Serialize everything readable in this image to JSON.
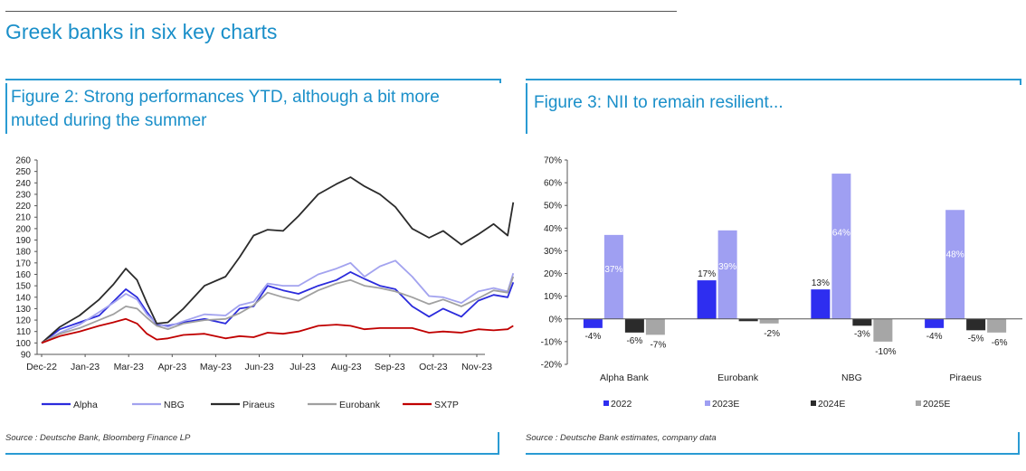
{
  "page": {
    "title": "Greek banks in six key charts"
  },
  "fig2": {
    "title": "Figure 2: Strong performances YTD, although a bit more muted during the summer",
    "source": "Source : Deutsche Bank, Bloomberg Finance LP"
  },
  "fig3": {
    "title": "Figure 3: NII to remain resilient...",
    "source": "Source : Deutsche Bank estimates, company data"
  },
  "chart_data": [
    {
      "type": "line",
      "title": "",
      "xlabel": "",
      "ylabel": "",
      "ylim": [
        90,
        260
      ],
      "yticks": [
        90,
        100,
        110,
        120,
        130,
        140,
        150,
        160,
        170,
        180,
        190,
        200,
        210,
        220,
        230,
        240,
        250,
        260
      ],
      "x_tick_labels": [
        "Dec-22",
        "Jan-23",
        "Mar-23",
        "Apr-23",
        "May-23",
        "Jun-23",
        "Jul-23",
        "Aug-23",
        "Sep-23",
        "Oct-23",
        "Nov-23"
      ],
      "x_tick_dates": [
        "2022-12-30",
        "2023-01-30",
        "2023-03-02",
        "2023-04-02",
        "2023-05-03",
        "2023-06-03",
        "2023-07-04",
        "2023-08-04",
        "2023-09-04",
        "2023-10-05",
        "2023-11-05"
      ],
      "legend_position": "bottom",
      "grid": false,
      "series": [
        {
          "name": "Alpha",
          "color": "#2b2bdc",
          "points": [
            [
              "2022-12-30",
              100
            ],
            [
              "2023-01-12",
              112
            ],
            [
              "2023-01-26",
              118
            ],
            [
              "2023-02-09",
              124
            ],
            [
              "2023-02-19",
              136
            ],
            [
              "2023-02-28",
              147
            ],
            [
              "2023-03-08",
              140
            ],
            [
              "2023-03-15",
              127
            ],
            [
              "2023-03-22",
              116
            ],
            [
              "2023-03-30",
              115
            ],
            [
              "2023-04-10",
              118
            ],
            [
              "2023-04-25",
              121
            ],
            [
              "2023-05-10",
              117
            ],
            [
              "2023-05-20",
              130
            ],
            [
              "2023-05-30",
              132
            ],
            [
              "2023-06-09",
              150
            ],
            [
              "2023-06-20",
              146
            ],
            [
              "2023-07-01",
              143
            ],
            [
              "2023-07-15",
              150
            ],
            [
              "2023-07-28",
              155
            ],
            [
              "2023-08-07",
              162
            ],
            [
              "2023-08-17",
              156
            ],
            [
              "2023-08-28",
              150
            ],
            [
              "2023-09-08",
              147
            ],
            [
              "2023-09-20",
              132
            ],
            [
              "2023-10-02",
              123
            ],
            [
              "2023-10-12",
              130
            ],
            [
              "2023-10-25",
              123
            ],
            [
              "2023-11-06",
              137
            ],
            [
              "2023-11-17",
              142
            ],
            [
              "2023-11-27",
              140
            ],
            [
              "2023-12-01",
              153
            ]
          ]
        },
        {
          "name": "NBG",
          "color": "#a3a3ef",
          "points": [
            [
              "2022-12-30",
              100
            ],
            [
              "2023-01-12",
              109
            ],
            [
              "2023-01-26",
              116
            ],
            [
              "2023-02-09",
              127
            ],
            [
              "2023-02-19",
              135
            ],
            [
              "2023-02-28",
              143
            ],
            [
              "2023-03-08",
              138
            ],
            [
              "2023-03-15",
              125
            ],
            [
              "2023-03-22",
              117
            ],
            [
              "2023-03-30",
              114
            ],
            [
              "2023-04-10",
              119
            ],
            [
              "2023-04-25",
              125
            ],
            [
              "2023-05-10",
              124
            ],
            [
              "2023-05-20",
              133
            ],
            [
              "2023-05-30",
              136
            ],
            [
              "2023-06-09",
              152
            ],
            [
              "2023-06-20",
              150
            ],
            [
              "2023-07-01",
              150
            ],
            [
              "2023-07-15",
              160
            ],
            [
              "2023-07-28",
              165
            ],
            [
              "2023-08-07",
              170
            ],
            [
              "2023-08-17",
              158
            ],
            [
              "2023-08-28",
              167
            ],
            [
              "2023-09-08",
              172
            ],
            [
              "2023-09-20",
              158
            ],
            [
              "2023-10-02",
              141
            ],
            [
              "2023-10-12",
              140
            ],
            [
              "2023-10-25",
              135
            ],
            [
              "2023-11-06",
              145
            ],
            [
              "2023-11-17",
              148
            ],
            [
              "2023-11-27",
              145
            ],
            [
              "2023-12-01",
              161
            ]
          ]
        },
        {
          "name": "Piraeus",
          "color": "#2b2b2b",
          "points": [
            [
              "2022-12-30",
              100
            ],
            [
              "2023-01-12",
              114
            ],
            [
              "2023-01-26",
              124
            ],
            [
              "2023-02-09",
              138
            ],
            [
              "2023-02-19",
              151
            ],
            [
              "2023-02-28",
              165
            ],
            [
              "2023-03-08",
              155
            ],
            [
              "2023-03-15",
              135
            ],
            [
              "2023-03-22",
              117
            ],
            [
              "2023-03-30",
              118
            ],
            [
              "2023-04-10",
              130
            ],
            [
              "2023-04-25",
              150
            ],
            [
              "2023-05-10",
              158
            ],
            [
              "2023-05-20",
              175
            ],
            [
              "2023-05-30",
              194
            ],
            [
              "2023-06-09",
              199
            ],
            [
              "2023-06-20",
              198
            ],
            [
              "2023-07-01",
              211
            ],
            [
              "2023-07-15",
              230
            ],
            [
              "2023-07-28",
              239
            ],
            [
              "2023-08-07",
              245
            ],
            [
              "2023-08-17",
              237
            ],
            [
              "2023-08-28",
              230
            ],
            [
              "2023-09-08",
              219
            ],
            [
              "2023-09-20",
              200
            ],
            [
              "2023-10-02",
              192
            ],
            [
              "2023-10-12",
              198
            ],
            [
              "2023-10-25",
              186
            ],
            [
              "2023-11-06",
              195
            ],
            [
              "2023-11-17",
              204
            ],
            [
              "2023-11-27",
              194
            ],
            [
              "2023-12-01",
              223
            ]
          ]
        },
        {
          "name": "Eurobank",
          "color": "#a0a0a0",
          "points": [
            [
              "2022-12-30",
              100
            ],
            [
              "2023-01-12",
              108
            ],
            [
              "2023-01-26",
              113
            ],
            [
              "2023-02-09",
              120
            ],
            [
              "2023-02-19",
              125
            ],
            [
              "2023-02-28",
              132
            ],
            [
              "2023-03-08",
              130
            ],
            [
              "2023-03-15",
              122
            ],
            [
              "2023-03-22",
              115
            ],
            [
              "2023-03-30",
              112
            ],
            [
              "2023-04-10",
              117
            ],
            [
              "2023-04-25",
              120
            ],
            [
              "2023-05-10",
              121
            ],
            [
              "2023-05-20",
              126
            ],
            [
              "2023-05-30",
              133
            ],
            [
              "2023-06-09",
              144
            ],
            [
              "2023-06-20",
              140
            ],
            [
              "2023-07-01",
              137
            ],
            [
              "2023-07-15",
              146
            ],
            [
              "2023-07-28",
              152
            ],
            [
              "2023-08-07",
              155
            ],
            [
              "2023-08-17",
              150
            ],
            [
              "2023-08-28",
              148
            ],
            [
              "2023-09-08",
              145
            ],
            [
              "2023-09-20",
              140
            ],
            [
              "2023-10-02",
              134
            ],
            [
              "2023-10-12",
              138
            ],
            [
              "2023-10-25",
              132
            ],
            [
              "2023-11-06",
              139
            ],
            [
              "2023-11-17",
              146
            ],
            [
              "2023-11-27",
              144
            ],
            [
              "2023-12-01",
              158
            ]
          ]
        },
        {
          "name": "SX7P",
          "color": "#c00000",
          "points": [
            [
              "2022-12-30",
              100
            ],
            [
              "2023-01-12",
              106
            ],
            [
              "2023-01-26",
              110
            ],
            [
              "2023-02-09",
              115
            ],
            [
              "2023-02-19",
              118
            ],
            [
              "2023-02-28",
              121
            ],
            [
              "2023-03-08",
              117
            ],
            [
              "2023-03-15",
              108
            ],
            [
              "2023-03-22",
              103
            ],
            [
              "2023-03-30",
              104
            ],
            [
              "2023-04-10",
              107
            ],
            [
              "2023-04-25",
              108
            ],
            [
              "2023-05-10",
              104
            ],
            [
              "2023-05-20",
              106
            ],
            [
              "2023-05-30",
              105
            ],
            [
              "2023-06-09",
              109
            ],
            [
              "2023-06-20",
              108
            ],
            [
              "2023-07-01",
              110
            ],
            [
              "2023-07-15",
              115
            ],
            [
              "2023-07-28",
              116
            ],
            [
              "2023-08-07",
              115
            ],
            [
              "2023-08-17",
              112
            ],
            [
              "2023-08-28",
              113
            ],
            [
              "2023-09-08",
              113
            ],
            [
              "2023-09-20",
              113
            ],
            [
              "2023-10-02",
              109
            ],
            [
              "2023-10-12",
              110
            ],
            [
              "2023-10-25",
              109
            ],
            [
              "2023-11-06",
              112
            ],
            [
              "2023-11-17",
              111
            ],
            [
              "2023-11-27",
              112
            ],
            [
              "2023-12-01",
              115
            ]
          ]
        }
      ]
    },
    {
      "type": "bar",
      "title": "",
      "xlabel": "",
      "ylabel": "",
      "ylim": [
        -20,
        70
      ],
      "yticks": [
        -20,
        -10,
        0,
        10,
        20,
        30,
        40,
        50,
        60,
        70
      ],
      "ytick_labels": [
        "-20%",
        "-10%",
        "0%",
        "10%",
        "20%",
        "30%",
        "40%",
        "50%",
        "60%",
        "70%"
      ],
      "categories": [
        "Alpha Bank",
        "Eurobank",
        "NBG",
        "Piraeus"
      ],
      "legend_position": "bottom",
      "grid": false,
      "series": [
        {
          "name": "2022",
          "color": "#2e2ef0",
          "values": [
            -4,
            17,
            13,
            -4
          ],
          "labels": [
            "-4%",
            "17%",
            "13%",
            "-4%"
          ],
          "label_color": "#222222"
        },
        {
          "name": "2023E",
          "color": "#9f9ff2",
          "values": [
            37,
            39,
            64,
            48
          ],
          "labels": [
            "37%",
            "39%",
            "64%",
            "48%"
          ],
          "label_color": "#ffffff"
        },
        {
          "name": "2024E",
          "color": "#2b2b2b",
          "values": [
            -6,
            -1,
            -3,
            -5
          ],
          "labels": [
            "-6%",
            "",
            "-3%",
            "-5%"
          ],
          "label_color": "#222222"
        },
        {
          "name": "2025E",
          "color": "#a6a6a6",
          "values": [
            -7,
            -2,
            -10,
            -6
          ],
          "labels": [
            "-7%",
            "-2%",
            "-10%",
            "-6%"
          ],
          "label_color": "#222222"
        }
      ]
    }
  ]
}
